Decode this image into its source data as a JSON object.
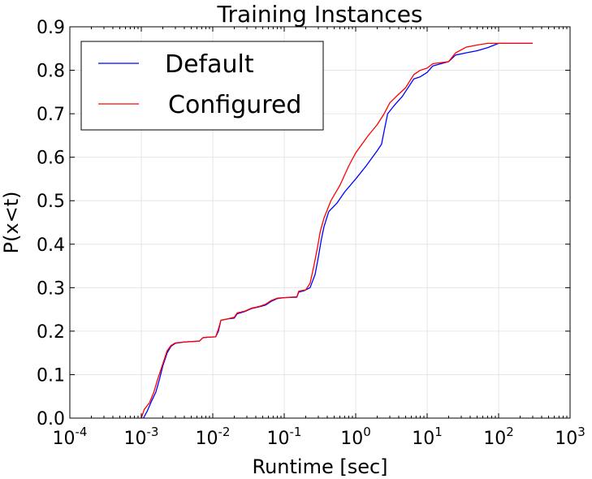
{
  "chart_data": {
    "type": "line",
    "title": "Training Instances",
    "xlabel": "Runtime [sec]",
    "ylabel": "P(x<t)",
    "xscale": "log",
    "xlim": [
      0.0001,
      1000
    ],
    "ylim": [
      0.0,
      0.9
    ],
    "grid": true,
    "legend": "top-left",
    "x_tick_labels": [
      {
        "base": "10",
        "exp": "-4",
        "value": 0.0001
      },
      {
        "base": "10",
        "exp": "-3",
        "value": 0.001
      },
      {
        "base": "10",
        "exp": "-2",
        "value": 0.01
      },
      {
        "base": "10",
        "exp": "-1",
        "value": 0.1
      },
      {
        "base": "10",
        "exp": "0",
        "value": 1
      },
      {
        "base": "10",
        "exp": "1",
        "value": 10
      },
      {
        "base": "10",
        "exp": "2",
        "value": 100
      },
      {
        "base": "10",
        "exp": "3",
        "value": 1000
      }
    ],
    "y_tick_labels": [
      "0.0",
      "0.1",
      "0.2",
      "0.3",
      "0.4",
      "0.5",
      "0.6",
      "0.7",
      "0.8",
      "0.9"
    ],
    "y_ticks": [
      0.0,
      0.1,
      0.2,
      0.3,
      0.4,
      0.5,
      0.6,
      0.7,
      0.8,
      0.9
    ],
    "series": [
      {
        "name": "Default",
        "color": "#0000ff",
        "points": [
          [
            0.00107,
            0.0
          ],
          [
            0.0012,
            0.015
          ],
          [
            0.0014,
            0.04
          ],
          [
            0.0016,
            0.06
          ],
          [
            0.0018,
            0.09
          ],
          [
            0.002,
            0.12
          ],
          [
            0.0023,
            0.15
          ],
          [
            0.0026,
            0.165
          ],
          [
            0.003,
            0.172
          ],
          [
            0.004,
            0.175
          ],
          [
            0.0065,
            0.177
          ],
          [
            0.0073,
            0.185
          ],
          [
            0.0085,
            0.186
          ],
          [
            0.011,
            0.187
          ],
          [
            0.012,
            0.2
          ],
          [
            0.013,
            0.225
          ],
          [
            0.016,
            0.228
          ],
          [
            0.02,
            0.23
          ],
          [
            0.022,
            0.24
          ],
          [
            0.028,
            0.245
          ],
          [
            0.035,
            0.252
          ],
          [
            0.045,
            0.256
          ],
          [
            0.055,
            0.26
          ],
          [
            0.065,
            0.268
          ],
          [
            0.08,
            0.275
          ],
          [
            0.1,
            0.277
          ],
          [
            0.15,
            0.278
          ],
          [
            0.16,
            0.29
          ],
          [
            0.19,
            0.293
          ],
          [
            0.23,
            0.3
          ],
          [
            0.27,
            0.33
          ],
          [
            0.3,
            0.37
          ],
          [
            0.33,
            0.41
          ],
          [
            0.36,
            0.44
          ],
          [
            0.42,
            0.475
          ],
          [
            0.55,
            0.495
          ],
          [
            0.7,
            0.52
          ],
          [
            1.0,
            0.55
          ],
          [
            1.4,
            0.58
          ],
          [
            2.0,
            0.615
          ],
          [
            2.3,
            0.63
          ],
          [
            2.5,
            0.66
          ],
          [
            2.8,
            0.7
          ],
          [
            3.5,
            0.72
          ],
          [
            4.5,
            0.74
          ],
          [
            6.5,
            0.78
          ],
          [
            8.0,
            0.785
          ],
          [
            10.0,
            0.795
          ],
          [
            12.0,
            0.81
          ],
          [
            20.0,
            0.82
          ],
          [
            25.0,
            0.835
          ],
          [
            35.0,
            0.84
          ],
          [
            50.0,
            0.845
          ],
          [
            70.0,
            0.852
          ],
          [
            100.0,
            0.862
          ],
          [
            300.0,
            0.862
          ]
        ]
      },
      {
        "name": "Configured",
        "color": "#ff0000",
        "points": [
          [
            0.001,
            0.0
          ],
          [
            0.0011,
            0.02
          ],
          [
            0.0013,
            0.035
          ],
          [
            0.0015,
            0.06
          ],
          [
            0.0017,
            0.09
          ],
          [
            0.002,
            0.125
          ],
          [
            0.0023,
            0.155
          ],
          [
            0.0026,
            0.167
          ],
          [
            0.003,
            0.173
          ],
          [
            0.004,
            0.175
          ],
          [
            0.0065,
            0.177
          ],
          [
            0.0073,
            0.185
          ],
          [
            0.0085,
            0.186
          ],
          [
            0.011,
            0.187
          ],
          [
            0.012,
            0.205
          ],
          [
            0.013,
            0.225
          ],
          [
            0.016,
            0.228
          ],
          [
            0.02,
            0.232
          ],
          [
            0.022,
            0.242
          ],
          [
            0.028,
            0.246
          ],
          [
            0.035,
            0.253
          ],
          [
            0.045,
            0.257
          ],
          [
            0.055,
            0.262
          ],
          [
            0.065,
            0.27
          ],
          [
            0.08,
            0.276
          ],
          [
            0.1,
            0.277
          ],
          [
            0.15,
            0.279
          ],
          [
            0.16,
            0.292
          ],
          [
            0.2,
            0.295
          ],
          [
            0.23,
            0.31
          ],
          [
            0.26,
            0.35
          ],
          [
            0.29,
            0.39
          ],
          [
            0.32,
            0.43
          ],
          [
            0.36,
            0.46
          ],
          [
            0.45,
            0.5
          ],
          [
            0.6,
            0.535
          ],
          [
            0.8,
            0.58
          ],
          [
            1.0,
            0.61
          ],
          [
            1.5,
            0.65
          ],
          [
            2.0,
            0.675
          ],
          [
            2.5,
            0.7
          ],
          [
            3.0,
            0.725
          ],
          [
            4.0,
            0.745
          ],
          [
            5.0,
            0.76
          ],
          [
            6.5,
            0.79
          ],
          [
            8.0,
            0.8
          ],
          [
            10.0,
            0.805
          ],
          [
            12.0,
            0.815
          ],
          [
            20.0,
            0.82
          ],
          [
            25.0,
            0.84
          ],
          [
            35.0,
            0.853
          ],
          [
            50.0,
            0.858
          ],
          [
            70.0,
            0.862
          ],
          [
            300.0,
            0.862
          ]
        ]
      }
    ]
  }
}
